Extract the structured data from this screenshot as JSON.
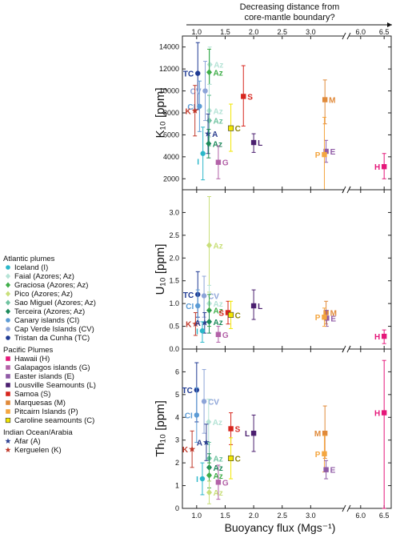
{
  "annotation": {
    "line1": "Decreasing distance from",
    "line2": "core-mantle boundary?"
  },
  "legend": {
    "groups": [
      {
        "title": "Atlantic plumes",
        "items": [
          {
            "label": "Iceland (I)",
            "color": "#2ab7c9",
            "marker": "circle"
          },
          {
            "label": "Faial (Azores; Az)",
            "color": "#b5e3d6",
            "marker": "diamond"
          },
          {
            "label": "Graciosa (Azores; Az)",
            "color": "#3fae49",
            "marker": "diamond"
          },
          {
            "label": "Pico (Azores; Az)",
            "color": "#c9df7a",
            "marker": "diamond"
          },
          {
            "label": "Sao Miguel (Azores; Az)",
            "color": "#6fc3a0",
            "marker": "diamond"
          },
          {
            "label": "Terceira (Azores; Az)",
            "color": "#1c8a5a",
            "marker": "diamond"
          },
          {
            "label": "Canary islands (CI)",
            "color": "#5b9bd5",
            "marker": "circle"
          },
          {
            "label": "Cap Verde Islands (CV)",
            "color": "#8da4d8",
            "marker": "circle"
          },
          {
            "label": "Tristan da Cunha (TC)",
            "color": "#1f3a93",
            "marker": "circle"
          }
        ]
      },
      {
        "title": "Pacific Plumes",
        "items": [
          {
            "label": "Hawaii (H)",
            "color": "#e5187a",
            "marker": "square"
          },
          {
            "label": "Galapagos islands (G)",
            "color": "#b362a8",
            "marker": "square"
          },
          {
            "label": "Easter islands (E)",
            "color": "#8f5aa6",
            "marker": "square"
          },
          {
            "label": "Lousville Seamounts (L)",
            "color": "#4b1f6f",
            "marker": "square"
          },
          {
            "label": "Samoa (S)",
            "color": "#d7261e",
            "marker": "square"
          },
          {
            "label": "Marquesas (M)",
            "color": "#e08a3a",
            "marker": "square"
          },
          {
            "label": "Pitcairn Islands (P)",
            "color": "#f4a640",
            "marker": "square"
          },
          {
            "label": "Caroline seamounts (C)",
            "color": "#f2e600",
            "marker": "square"
          }
        ]
      },
      {
        "title": "Indian Ocean/Arabia",
        "items": [
          {
            "label": "Afar (A)",
            "color": "#2c3e8f",
            "marker": "star"
          },
          {
            "label": "Kerguelen (K)",
            "color": "#c0392b",
            "marker": "star"
          }
        ]
      }
    ]
  },
  "chart_data": {
    "type": "scatter",
    "xlabel": "Buoyancy flux (Mgs⁻¹)",
    "x_axis": {
      "segment1": {
        "range": [
          0.75,
          3.5
        ],
        "ticks": [
          1.0,
          1.5,
          2.0,
          2.5,
          3.0
        ]
      },
      "segment2": {
        "range": [
          5.85,
          6.65
        ],
        "ticks": [
          6.0,
          6.5
        ]
      },
      "tick_labels": [
        "1.0",
        "1.5",
        "2.0",
        "2.5",
        "3.0",
        "6.0",
        "6.5"
      ],
      "break": true
    },
    "panels": [
      {
        "ylabel": "K₁₀ [ppm]",
        "ylim": [
          1000,
          15000
        ],
        "yticks": [
          2000,
          4000,
          6000,
          8000,
          10000,
          12000,
          14000
        ],
        "ytick_labels": [
          "2000",
          "4000",
          "6000",
          "8000",
          "10000",
          "12000",
          "14000"
        ],
        "points": [
          {
            "label": "TC",
            "x": 1.02,
            "y": 11600,
            "lo": 8300,
            "hi": 14400,
            "color": "#1f3a93",
            "marker": "circle",
            "side": "left"
          },
          {
            "label": "CV",
            "x": 1.15,
            "y": 10000,
            "lo": 7300,
            "hi": 12700,
            "color": "#8da4d8",
            "marker": "circle",
            "side": "left"
          },
          {
            "label": "CI",
            "x": 1.05,
            "y": 8600,
            "lo": 6300,
            "hi": 10900,
            "color": "#5b9bd5",
            "marker": "circle",
            "side": "left"
          },
          {
            "label": "K",
            "x": 0.97,
            "y": 8200,
            "lo": 5900,
            "hi": 10500,
            "color": "#c0392b",
            "marker": "star",
            "side": "left"
          },
          {
            "label": "I",
            "x": 1.11,
            "y": 4300,
            "lo": 1900,
            "hi": 6700,
            "color": "#2ab7c9",
            "marker": "circle",
            "side": "below"
          },
          {
            "label": "Az",
            "x": 1.23,
            "y": 12400,
            "lo": 10600,
            "hi": 14000,
            "color": "#b5e3d6",
            "marker": "diamond",
            "side": "right"
          },
          {
            "label": "Az",
            "x": 1.22,
            "y": 11700,
            "lo": 9600,
            "hi": 13800,
            "color": "#3fae49",
            "marker": "diamond",
            "side": "right"
          },
          {
            "label": "Az",
            "x": 1.22,
            "y": 8200,
            "lo": 5800,
            "hi": 10600,
            "color": "#b5e3d6",
            "marker": "diamond",
            "side": "right"
          },
          {
            "label": "Az",
            "x": 1.22,
            "y": 7300,
            "lo": 5000,
            "hi": 9600,
            "color": "#6fc3a0",
            "marker": "diamond",
            "side": "right"
          },
          {
            "label": "A",
            "x": 1.2,
            "y": 6100,
            "lo": 4300,
            "hi": 7900,
            "color": "#2c3e8f",
            "marker": "star",
            "side": "right"
          },
          {
            "label": "Az",
            "x": 1.21,
            "y": 5200,
            "lo": 3900,
            "hi": 6500,
            "color": "#1c8a5a",
            "marker": "diamond",
            "side": "right"
          },
          {
            "label": "G",
            "x": 1.38,
            "y": 3500,
            "lo": 2000,
            "hi": 5000,
            "color": "#b362a8",
            "marker": "square",
            "side": "right"
          },
          {
            "label": "C",
            "x": 1.6,
            "y": 6600,
            "lo": 4500,
            "hi": 8800,
            "color": "#f2e600",
            "marker": "square",
            "side": "right"
          },
          {
            "label": "S",
            "x": 1.82,
            "y": 9500,
            "lo": 6800,
            "hi": 12300,
            "color": "#d7261e",
            "marker": "square",
            "side": "right"
          },
          {
            "label": "L",
            "x": 2.0,
            "y": 5300,
            "lo": 4400,
            "hi": 6100,
            "color": "#4b1f6f",
            "marker": "square",
            "side": "right"
          },
          {
            "label": "M",
            "x": 3.25,
            "y": 9200,
            "lo": 7000,
            "hi": 11000,
            "color": "#e08a3a",
            "marker": "square",
            "side": "right"
          },
          {
            "label": "E",
            "x": 3.27,
            "y": 4500,
            "lo": 3500,
            "hi": 5500,
            "color": "#8f5aa6",
            "marker": "square",
            "side": "right"
          },
          {
            "label": "P",
            "x": 3.24,
            "y": 4200,
            "lo": 1000,
            "hi": 7600,
            "color": "#f4a640",
            "marker": "square",
            "side": "left"
          },
          {
            "label": "H",
            "x": 6.5,
            "y": 3100,
            "lo": 2000,
            "hi": 4300,
            "color": "#e5187a",
            "marker": "square",
            "side": "left"
          }
        ]
      },
      {
        "ylabel": "U₁₀ [ppm]",
        "ylim": [
          0,
          3.5
        ],
        "yticks": [
          0.0,
          0.5,
          1.0,
          1.5,
          2.0,
          2.5,
          3.0
        ],
        "ytick_labels": [
          "0.0",
          "0.5",
          "1.0",
          "1.5",
          "2.0",
          "2.5",
          "3.0"
        ],
        "points": [
          {
            "label": "TC",
            "x": 1.02,
            "y": 1.2,
            "lo": 0.7,
            "hi": 1.7,
            "color": "#1f3a93",
            "marker": "circle",
            "side": "left"
          },
          {
            "label": "CV",
            "x": 1.13,
            "y": 1.17,
            "lo": 0.7,
            "hi": 1.6,
            "color": "#8da4d8",
            "marker": "circle",
            "side": "right"
          },
          {
            "label": "CI",
            "x": 1.02,
            "y": 0.95,
            "lo": 0.6,
            "hi": 1.3,
            "color": "#5b9bd5",
            "marker": "circle",
            "side": "left"
          },
          {
            "label": "K",
            "x": 0.98,
            "y": 0.55,
            "lo": 0.3,
            "hi": 0.8,
            "color": "#c0392b",
            "marker": "star",
            "side": "left"
          },
          {
            "label": "Az",
            "x": 1.22,
            "y": 2.28,
            "lo": 1.25,
            "hi": 3.35,
            "color": "#c9df7a",
            "marker": "diamond",
            "side": "right"
          },
          {
            "label": "Az",
            "x": 1.22,
            "y": 1.0,
            "lo": 0.6,
            "hi": 1.4,
            "color": "#b5e3d6",
            "marker": "diamond",
            "side": "right"
          },
          {
            "label": "Az",
            "x": 1.22,
            "y": 0.85,
            "lo": 0.5,
            "hi": 1.2,
            "color": "#3fae49",
            "marker": "diamond",
            "side": "right"
          },
          {
            "label": "A",
            "x": 1.14,
            "y": 0.58,
            "lo": 0.35,
            "hi": 0.8,
            "color": "#2c3e8f",
            "marker": "star",
            "side": "left"
          },
          {
            "label": "Az",
            "x": 1.22,
            "y": 0.6,
            "lo": 0.35,
            "hi": 0.85,
            "color": "#1c8a5a",
            "marker": "diamond",
            "side": "right"
          },
          {
            "label": "I",
            "x": 1.1,
            "y": 0.4,
            "lo": 0.15,
            "hi": 0.6,
            "color": "#2ab7c9",
            "marker": "circle",
            "side": "left"
          },
          {
            "label": "G",
            "x": 1.38,
            "y": 0.32,
            "lo": 0.15,
            "hi": 0.5,
            "color": "#b362a8",
            "marker": "square",
            "side": "right"
          },
          {
            "label": "S",
            "x": 1.55,
            "y": 0.8,
            "lo": 0.55,
            "hi": 1.05,
            "color": "#d7261e",
            "marker": "square",
            "side": "left"
          },
          {
            "label": "C",
            "x": 1.6,
            "y": 0.75,
            "lo": 0.45,
            "hi": 1.05,
            "color": "#f2e600",
            "marker": "square",
            "side": "right"
          },
          {
            "label": "L",
            "x": 2.0,
            "y": 0.95,
            "lo": 0.65,
            "hi": 1.3,
            "color": "#4b1f6f",
            "marker": "square",
            "side": "right"
          },
          {
            "label": "M",
            "x": 3.27,
            "y": 0.8,
            "lo": 0.55,
            "hi": 1.05,
            "color": "#e08a3a",
            "marker": "square",
            "side": "right"
          },
          {
            "label": "E",
            "x": 3.28,
            "y": 0.68,
            "lo": 0.5,
            "hi": 0.85,
            "color": "#8f5aa6",
            "marker": "square",
            "side": "right"
          },
          {
            "label": "P",
            "x": 3.24,
            "y": 0.7,
            "lo": 0.5,
            "hi": 0.9,
            "color": "#f4a640",
            "marker": "square",
            "side": "left"
          },
          {
            "label": "H",
            "x": 6.5,
            "y": 0.28,
            "lo": 0.12,
            "hi": 0.42,
            "color": "#e5187a",
            "marker": "square",
            "side": "left"
          }
        ]
      },
      {
        "ylabel": "Th₁₀ [ppm]",
        "ylim": [
          0,
          7
        ],
        "yticks": [
          0,
          1,
          2,
          3,
          4,
          5,
          6
        ],
        "ytick_labels": [
          "0",
          "1",
          "2",
          "3",
          "4",
          "5",
          "6"
        ],
        "points": [
          {
            "label": "TC",
            "x": 1.0,
            "y": 5.2,
            "lo": 3.8,
            "hi": 6.4,
            "color": "#1f3a93",
            "marker": "circle",
            "side": "left"
          },
          {
            "label": "CV",
            "x": 1.13,
            "y": 4.7,
            "lo": 3.3,
            "hi": 6.1,
            "color": "#8da4d8",
            "marker": "circle",
            "side": "right"
          },
          {
            "label": "CI",
            "x": 1.0,
            "y": 4.1,
            "lo": 2.9,
            "hi": 5.3,
            "color": "#5b9bd5",
            "marker": "circle",
            "side": "left"
          },
          {
            "label": "Az",
            "x": 1.21,
            "y": 3.8,
            "lo": 2.8,
            "hi": 4.8,
            "color": "#b5e3d6",
            "marker": "diamond",
            "side": "right"
          },
          {
            "label": "A",
            "x": 1.17,
            "y": 2.9,
            "lo": 2.1,
            "hi": 3.7,
            "color": "#2c3e8f",
            "marker": "star",
            "side": "left"
          },
          {
            "label": "K",
            "x": 0.92,
            "y": 2.6,
            "lo": 1.8,
            "hi": 3.4,
            "color": "#c0392b",
            "marker": "star",
            "side": "left"
          },
          {
            "label": "Az",
            "x": 1.22,
            "y": 2.2,
            "lo": 1.5,
            "hi": 2.9,
            "color": "#6fc3a0",
            "marker": "diamond",
            "side": "right"
          },
          {
            "label": "Az",
            "x": 1.22,
            "y": 1.8,
            "lo": 1.2,
            "hi": 2.4,
            "color": "#1c8a5a",
            "marker": "diamond",
            "side": "right"
          },
          {
            "label": "Az",
            "x": 1.22,
            "y": 1.45,
            "lo": 0.9,
            "hi": 2.0,
            "color": "#3fae49",
            "marker": "diamond",
            "side": "right"
          },
          {
            "label": "I",
            "x": 1.1,
            "y": 1.3,
            "lo": 0.6,
            "hi": 2.0,
            "color": "#2ab7c9",
            "marker": "circle",
            "side": "left"
          },
          {
            "label": "Az",
            "x": 1.22,
            "y": 0.7,
            "lo": 0.2,
            "hi": 1.2,
            "color": "#c9df7a",
            "marker": "diamond",
            "side": "right"
          },
          {
            "label": "G",
            "x": 1.38,
            "y": 1.15,
            "lo": 0.4,
            "hi": 1.9,
            "color": "#b362a8",
            "marker": "square",
            "side": "right"
          },
          {
            "label": "S",
            "x": 1.6,
            "y": 3.5,
            "lo": 2.8,
            "hi": 4.2,
            "color": "#d7261e",
            "marker": "square",
            "side": "right"
          },
          {
            "label": "C",
            "x": 1.6,
            "y": 2.2,
            "lo": 1.3,
            "hi": 3.1,
            "color": "#f2e600",
            "marker": "square",
            "side": "right"
          },
          {
            "label": "L",
            "x": 2.0,
            "y": 3.3,
            "lo": 2.5,
            "hi": 4.1,
            "color": "#4b1f6f",
            "marker": "square",
            "side": "left"
          },
          {
            "label": "M",
            "x": 3.25,
            "y": 3.3,
            "lo": 2.2,
            "hi": 4.5,
            "color": "#e08a3a",
            "marker": "square",
            "side": "left"
          },
          {
            "label": "P",
            "x": 3.24,
            "y": 2.4,
            "lo": 1.6,
            "hi": 3.2,
            "color": "#f4a640",
            "marker": "square",
            "side": "left"
          },
          {
            "label": "E",
            "x": 3.27,
            "y": 1.7,
            "lo": 1.3,
            "hi": 2.1,
            "color": "#8f5aa6",
            "marker": "square",
            "side": "right"
          },
          {
            "label": "H",
            "x": 6.5,
            "y": 4.2,
            "lo": 0.0,
            "hi": 6.5,
            "color": "#e5187a",
            "marker": "square",
            "side": "left"
          }
        ]
      }
    ]
  }
}
